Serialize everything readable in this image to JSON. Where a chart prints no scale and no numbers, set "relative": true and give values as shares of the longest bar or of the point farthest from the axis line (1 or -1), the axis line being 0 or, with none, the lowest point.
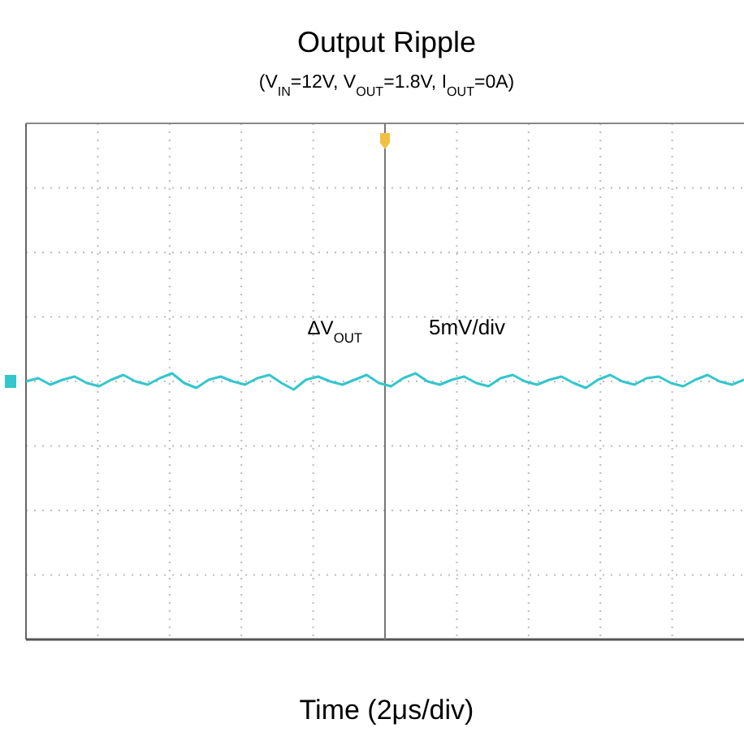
{
  "chart_data": {
    "type": "line",
    "title": "Output Ripple",
    "subtitle": "(V$_{IN}$=12V, V$_{OUT}$=1.8V, I$_{OUT}$=0A)",
    "annotations": [
      "ΔV$_{OUT}$",
      "5mV/div",
      "Time (2μs/div)"
    ],
    "relative": true,
    "grid": true,
    "categories": [
      null,
      null,
      null,
      null,
      null,
      null,
      null,
      null,
      null,
      null,
      null,
      null,
      null,
      null,
      null,
      null,
      null,
      null,
      null,
      null,
      null,
      null,
      null,
      null,
      null,
      null,
      null,
      null,
      null,
      null,
      null,
      null,
      null,
      null,
      null,
      null,
      null,
      null,
      null,
      null,
      null,
      null,
      null,
      null,
      null,
      null,
      null,
      null,
      null,
      null,
      null,
      null,
      null,
      null,
      null,
      null,
      null,
      null,
      null,
      null
    ],
    "series": [
      {
        "color": "#33c6cc",
        "values": [
          0.5,
          0.7,
          0.3,
          0.6,
          0.8,
          0.4,
          0.2,
          0.6,
          0.9,
          0.5,
          0.3,
          0.7,
          1,
          0.4,
          0.1,
          0.6,
          0.8,
          0.5,
          0.3,
          0.7,
          0.9,
          0.4,
          0,
          0.6,
          0.8,
          0.5,
          0.3,
          0.6,
          0.9,
          0.4,
          0.2,
          0.7,
          1,
          0.5,
          0.3,
          0.6,
          0.8,
          0.4,
          0.2,
          0.7,
          0.9,
          0.5,
          0.3,
          0.6,
          0.8,
          0.4,
          0.1,
          0.6,
          0.9,
          0.5,
          0.3,
          0.7,
          0.8,
          0.4,
          0.2,
          0.6,
          0.9,
          0.5,
          0.3,
          0.6
        ]
      }
    ]
  }
}
